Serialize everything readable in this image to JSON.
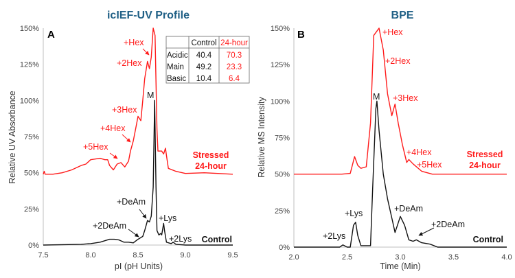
{
  "chart_data": [
    {
      "type": "line",
      "panel_label": "A",
      "title": "icIEF-UV Profile",
      "xlabel": "pI (pH Units)",
      "ylabel": "Relative UV Absorbance",
      "xlim": [
        7.5,
        9.5
      ],
      "ylim": [
        0,
        150
      ],
      "xticks": [
        "7.5",
        "8.0",
        "8.5",
        "9.0",
        "9.5"
      ],
      "yticks": [
        "0%",
        "25%",
        "50%",
        "75%",
        "100%",
        "125%",
        "150%"
      ],
      "colors": {
        "stressed": "#ff1a1a",
        "control": "#111111",
        "title": "#1f5f85"
      },
      "series": [
        {
          "name": "Control",
          "color": "#111111",
          "x": [
            7.5,
            7.9,
            8.0,
            8.1,
            8.2,
            8.25,
            8.3,
            8.35,
            8.4,
            8.45,
            8.5,
            8.55,
            8.57,
            8.6,
            8.62,
            8.64,
            8.66,
            8.675,
            8.69,
            8.7,
            8.72,
            8.74,
            8.75,
            8.77,
            8.78,
            8.8,
            8.85,
            8.87,
            8.9,
            9.0,
            9.5
          ],
          "y": [
            0,
            0.5,
            1,
            2,
            4,
            4,
            3.5,
            2,
            2,
            1.5,
            4,
            6,
            10,
            17,
            16,
            20,
            40,
            100,
            40,
            10,
            7,
            8,
            7,
            15,
            10,
            2,
            1,
            2,
            0.5,
            0,
            0
          ]
        },
        {
          "name": "Stressed 24-hour",
          "color": "#ff1a1a",
          "x": [
            7.5,
            7.51,
            7.52,
            7.6,
            7.7,
            7.8,
            7.9,
            7.95,
            8.0,
            8.1,
            8.15,
            8.18,
            8.2,
            8.24,
            8.28,
            8.32,
            8.36,
            8.4,
            8.42,
            8.45,
            8.48,
            8.5,
            8.53,
            8.55,
            8.57,
            8.6,
            8.62,
            8.64,
            8.66,
            8.68,
            8.7,
            8.71,
            8.75,
            8.77,
            8.79,
            8.8,
            8.82,
            8.9,
            9.0,
            9.2,
            9.5
          ],
          "y": [
            49,
            51,
            49,
            49,
            50,
            52,
            55,
            56,
            59,
            60,
            59,
            59,
            55,
            52,
            56,
            57,
            54,
            58,
            65,
            72,
            82,
            89,
            86,
            100,
            115,
            127,
            122,
            130,
            150,
            145,
            80,
            65,
            65,
            63,
            67,
            62,
            53,
            51,
            49.5,
            50,
            49
          ]
        }
      ],
      "annotations": {
        "hex1": "+Hex",
        "hex2": "+2Hex",
        "hex3": "+3Hex",
        "hex4": "+4Hex",
        "hex5": "+5Hex",
        "main": "M",
        "deam": "+DeAm",
        "deam2": "+2DeAm",
        "lys": "+Lys",
        "lys2": "+2Lys",
        "stressed_1": "Stressed",
        "stressed_2": "24-hour",
        "control": "Control"
      },
      "inset_table": {
        "headers": [
          "",
          "Control",
          "24-hour"
        ],
        "rows": [
          [
            "Acidic",
            "40.4",
            "70.3"
          ],
          [
            "Main",
            "49.2",
            "23.3"
          ],
          [
            "Basic",
            "10.4",
            "6.4"
          ]
        ]
      }
    },
    {
      "type": "line",
      "panel_label": "B",
      "title": "BPE",
      "xlabel": "Time (Min)",
      "ylabel": "Relative MS Intensity",
      "xlim": [
        2.0,
        4.0
      ],
      "ylim": [
        0,
        150
      ],
      "xticks": [
        "2.0",
        "2.5",
        "3.0",
        "3.5",
        "4.0"
      ],
      "yticks": [
        "0%",
        "25%",
        "50%",
        "75%",
        "100%",
        "125%",
        "150%"
      ],
      "series": [
        {
          "name": "Control",
          "color": "#111111",
          "x": [
            2.0,
            2.43,
            2.46,
            2.5,
            2.53,
            2.56,
            2.58,
            2.6,
            2.63,
            2.72,
            2.74,
            2.77,
            2.78,
            2.8,
            2.84,
            2.88,
            2.92,
            2.95,
            3.0,
            3.04,
            3.08,
            3.12,
            3.15,
            3.2,
            3.28,
            3.35,
            4.0
          ],
          "y": [
            0,
            0,
            1.5,
            0,
            0,
            15,
            17,
            8,
            1,
            1,
            40,
            95,
            100,
            80,
            50,
            33,
            20,
            10,
            21,
            15,
            5,
            4,
            5,
            3,
            2,
            0,
            0
          ]
        },
        {
          "name": "Stressed 24-hour",
          "color": "#ff1a1a",
          "x": [
            2.0,
            2.45,
            2.53,
            2.57,
            2.6,
            2.63,
            2.68,
            2.72,
            2.75,
            2.78,
            2.8,
            2.84,
            2.88,
            2.92,
            2.95,
            2.98,
            3.02,
            3.06,
            3.08,
            3.12,
            3.2,
            3.3,
            4.0
          ],
          "y": [
            50,
            50,
            50.5,
            62,
            56,
            54,
            55,
            85,
            145,
            148,
            150,
            135,
            105,
            90,
            98,
            85,
            70,
            58,
            60,
            57,
            52,
            50,
            50
          ]
        }
      ],
      "annotations": {
        "hex1": "+Hex",
        "hex2": "+2Hex",
        "hex3": "+3Hex",
        "hex4": "+4Hex",
        "hex5": "+5Hex",
        "main": "M",
        "deam": "+DeAm",
        "deam2": "+2DeAm",
        "lys": "+Lys",
        "lys2": "+2Lys",
        "stressed_1": "Stressed",
        "stressed_2": "24-hour",
        "control": "Control"
      }
    }
  ]
}
